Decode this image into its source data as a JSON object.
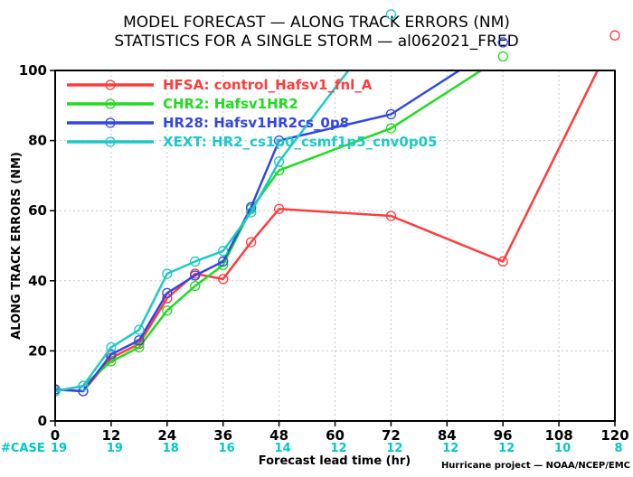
{
  "chart_data": {
    "type": "line",
    "title_line1": "MODEL FORECAST — ALONG TRACK ERRORS (NM)",
    "title_line2": "STATISTICS FOR A SINGLE STORM — al062021_FRED",
    "xlabel": "Forecast lead time (hr)",
    "ylabel": "ALONG TRACK ERRORS (NM)",
    "footer": "Hurricane project — NOAA/NCEP/EMC",
    "xlim": [
      0,
      120
    ],
    "ylim": [
      0,
      100
    ],
    "xticks": [
      0,
      12,
      24,
      36,
      48,
      60,
      72,
      84,
      96,
      108,
      120
    ],
    "yticks": [
      0,
      20,
      40,
      60,
      80,
      100
    ],
    "grid": true,
    "legend_position": "top-left",
    "case_label": "#CASE",
    "case_counts": [
      "19",
      "19",
      "18",
      "16",
      "14",
      "12",
      "12",
      "12",
      "12",
      "10",
      "8"
    ],
    "series": [
      {
        "name": "HFSA:",
        "desc": "control_Hafsv1_fnl_A",
        "color": "#ff3c3c",
        "x": [
          0,
          6,
          12,
          18,
          24,
          30,
          36,
          42,
          48,
          72,
          96,
          120
        ],
        "y": [
          9,
          8.5,
          18,
          22,
          35,
          42,
          40.5,
          51,
          60.5,
          58.5,
          45.5,
          110
        ]
      },
      {
        "name": "CHR2:",
        "desc": "Hafsv1HR2",
        "color": "#1edc1e",
        "x": [
          0,
          6,
          12,
          18,
          24,
          30,
          36,
          42,
          48,
          72,
          96
        ],
        "y": [
          8.5,
          10,
          17,
          21,
          31.5,
          38.5,
          44.5,
          60.5,
          71.5,
          83.5,
          104
        ]
      },
      {
        "name": "HR28:",
        "desc": "Hafsv1HR2cs_0p8",
        "color": "#3246e6",
        "x": [
          0,
          6,
          12,
          18,
          24,
          30,
          36,
          42,
          48,
          72,
          96
        ],
        "y": [
          9,
          8.5,
          19,
          23,
          36.5,
          41.5,
          45.5,
          61,
          80,
          87.5,
          108
        ]
      },
      {
        "name": "XEXT:",
        "desc": "HR2_cs1p0_csmf1p5_cnv0p05",
        "color": "#1ec8c8",
        "x": [
          0,
          6,
          12,
          18,
          24,
          30,
          36,
          42,
          48,
          72
        ],
        "y": [
          8.5,
          10,
          21,
          26,
          42,
          45.5,
          48.5,
          59.5,
          74,
          116
        ]
      }
    ]
  }
}
